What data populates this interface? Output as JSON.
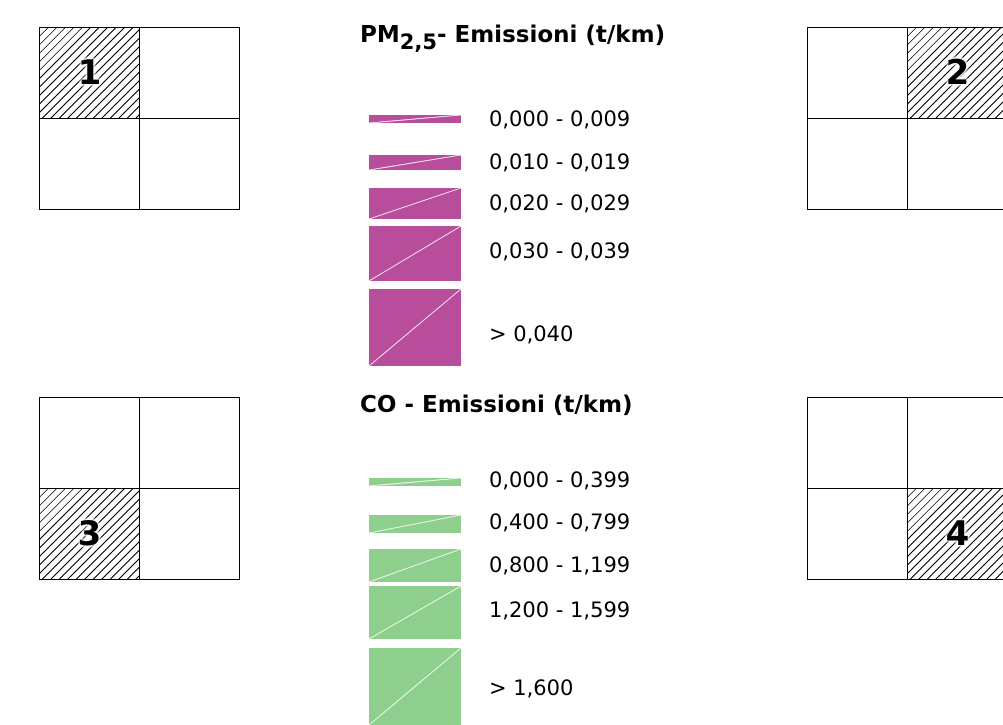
{
  "quadrants": [
    {
      "number": "1",
      "highlighted_cell": 0
    },
    {
      "number": "2",
      "highlighted_cell": 1
    },
    {
      "number": "3",
      "highlighted_cell": 2
    },
    {
      "number": "4",
      "highlighted_cell": 3
    }
  ],
  "pm25_legend": {
    "title_prefix": "PM",
    "title_subscript": "2,5",
    "title_suffix": "-  Emissioni (t/km)",
    "color": "#b84e9b",
    "classes": [
      {
        "range": "0,000 - 0,009"
      },
      {
        "range": "0,010 - 0,019"
      },
      {
        "range": "0,020 - 0,029"
      },
      {
        "range": "0,030  - 0,039"
      },
      {
        "range": "> 0,040"
      }
    ]
  },
  "co_legend": {
    "title": "CO  -  Emissioni (t/km)",
    "color": "#8fcf8e",
    "classes": [
      {
        "range": "0,000  - 0,399"
      },
      {
        "range": "0,400 - 0,799"
      },
      {
        "range": "0,800 - 1,199"
      },
      {
        "range": "1,200 - 1,599"
      },
      {
        "range": "> 1,600"
      }
    ]
  }
}
